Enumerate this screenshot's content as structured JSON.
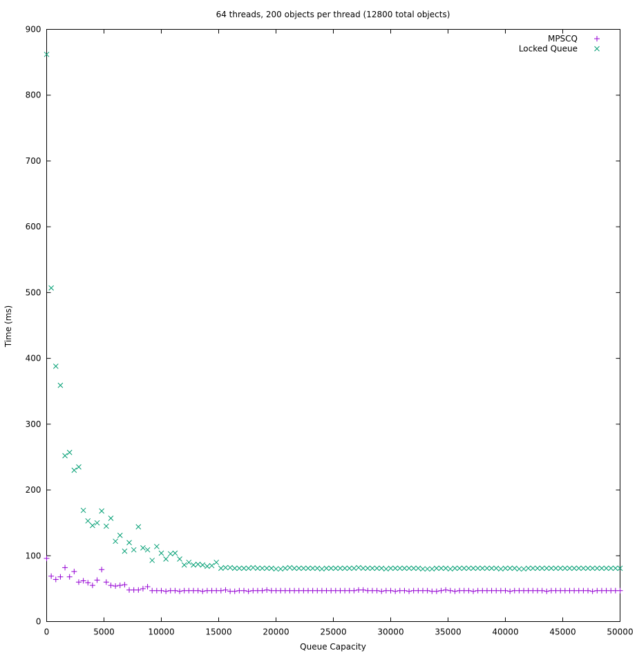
{
  "chart_data": {
    "type": "scatter",
    "title": "64 threads, 200 objects per thread (12800 total objects)",
    "xlabel": "Queue Capacity",
    "ylabel": "Time (ms)",
    "xlim": [
      0,
      50000
    ],
    "ylim": [
      0,
      900
    ],
    "xticks": [
      0,
      5000,
      10000,
      15000,
      20000,
      25000,
      30000,
      35000,
      40000,
      45000,
      50000
    ],
    "yticks": [
      0,
      100,
      200,
      300,
      400,
      500,
      600,
      700,
      800,
      900
    ],
    "grid": false,
    "legend_position": "top-right",
    "series": [
      {
        "name": "MPSCQ",
        "marker": "plus",
        "color": "#9400d3",
        "x_start": 0,
        "x_step": 400,
        "values": [
          96,
          69,
          64,
          68,
          82,
          68,
          76,
          60,
          62,
          59,
          55,
          63,
          79,
          60,
          55,
          54,
          55,
          56,
          48,
          48,
          48,
          50,
          53,
          47,
          47,
          47,
          46,
          47,
          47,
          46,
          47,
          47,
          47,
          47,
          46,
          47,
          47,
          47,
          47,
          48,
          46,
          46,
          47,
          47,
          46,
          47,
          47,
          47,
          48,
          47,
          47,
          47,
          47,
          47,
          47,
          47,
          47,
          47,
          47,
          47,
          47,
          47,
          47,
          47,
          47,
          47,
          47,
          47,
          48,
          48,
          47,
          47,
          47,
          46,
          47,
          47,
          46,
          47,
          47,
          46,
          47,
          47,
          47,
          47,
          46,
          46,
          47,
          48,
          47,
          46,
          47,
          47,
          47,
          46,
          47,
          47,
          47,
          47,
          47,
          47,
          47,
          46,
          47,
          47,
          47,
          47,
          47,
          47,
          47,
          46,
          47,
          47,
          47,
          47,
          47,
          47,
          47,
          47,
          47,
          46,
          47,
          47,
          47,
          47,
          47,
          47
        ]
      },
      {
        "name": "Locked Queue",
        "marker": "x",
        "color": "#009e73",
        "x_start": 0,
        "x_step": 400,
        "values": [
          862,
          507,
          388,
          359,
          252,
          257,
          230,
          235,
          169,
          153,
          146,
          150,
          168,
          145,
          157,
          122,
          131,
          107,
          120,
          109,
          144,
          112,
          109,
          93,
          114,
          104,
          95,
          103,
          104,
          95,
          86,
          90,
          86,
          87,
          86,
          84,
          85,
          90,
          81,
          82,
          82,
          81,
          81,
          81,
          81,
          82,
          81,
          81,
          81,
          81,
          80,
          80,
          81,
          82,
          81,
          81,
          81,
          81,
          81,
          81,
          80,
          81,
          81,
          81,
          81,
          81,
          81,
          81,
          82,
          81,
          81,
          81,
          81,
          81,
          80,
          81,
          81,
          81,
          81,
          81,
          81,
          81,
          80,
          80,
          80,
          81,
          81,
          81,
          80,
          81,
          81,
          81,
          81,
          81,
          81,
          81,
          81,
          81,
          81,
          80,
          81,
          81,
          81,
          80,
          80,
          81,
          81,
          81,
          81,
          81,
          81,
          81,
          81,
          81,
          81,
          81,
          81,
          81,
          81,
          81,
          81,
          81,
          81,
          81,
          81,
          81
        ]
      }
    ]
  }
}
